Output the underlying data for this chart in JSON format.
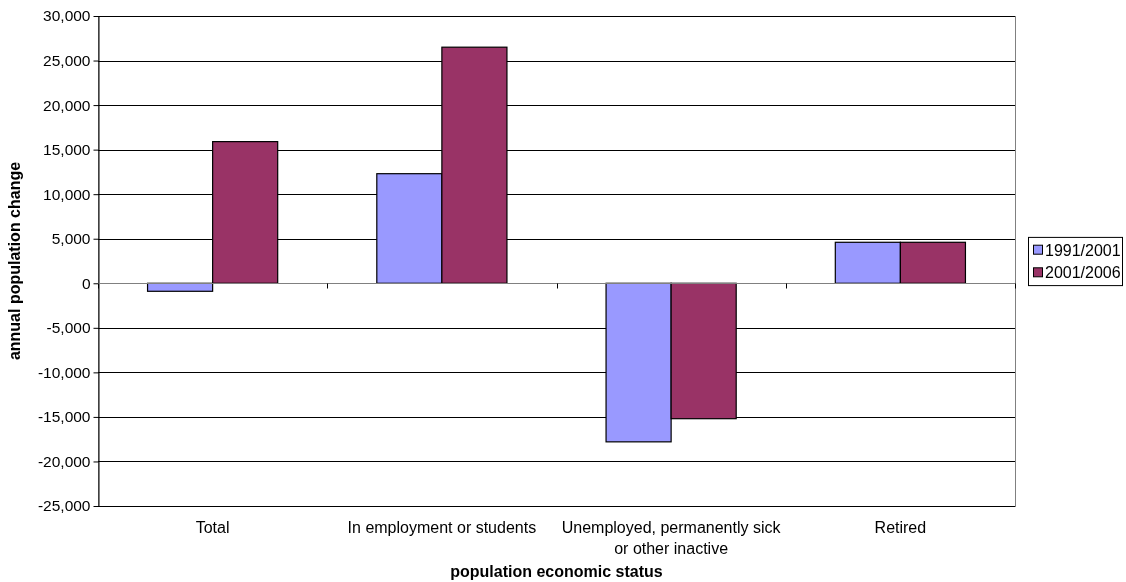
{
  "chart_data": {
    "type": "bar",
    "xlabel": "population economic status",
    "ylabel": "annual population change",
    "categories": [
      "Total",
      "In employment or students",
      "Unemployed, permanently sick or other inactive",
      "Retired"
    ],
    "series": [
      {
        "name": "1991/2001",
        "color": "#9999ff",
        "values": [
          -900,
          12300,
          -17800,
          4600
        ]
      },
      {
        "name": "2001/2006",
        "color": "#993366",
        "values": [
          15900,
          26500,
          -15200,
          4600
        ]
      }
    ],
    "ylim": [
      -25000,
      30000
    ],
    "yticks": [
      {
        "value": -25000,
        "label": "-25,000"
      },
      {
        "value": -20000,
        "label": "-20,000"
      },
      {
        "value": -15000,
        "label": "-15,000"
      },
      {
        "value": -10000,
        "label": "-10,000"
      },
      {
        "value": -5000,
        "label": "-5,000"
      },
      0,
      {
        "value": 5000,
        "label": "5,000"
      },
      {
        "value": 10000,
        "label": "10,000"
      },
      {
        "value": 15000,
        "label": "15,000"
      },
      {
        "value": 20000,
        "label": "20,000"
      },
      {
        "value": 25000,
        "label": "25,000"
      },
      {
        "value": 30000,
        "label": "30,000"
      }
    ],
    "grid": "y",
    "legend": "right"
  }
}
